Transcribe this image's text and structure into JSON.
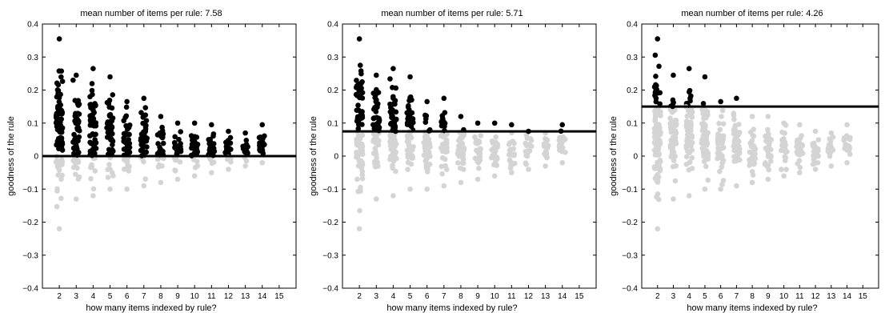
{
  "colors": {
    "above": "#000000",
    "below": "#d4d4d4",
    "threshold": "#000000",
    "frame": "#000000"
  },
  "chart_data": [
    {
      "type": "scatter",
      "title": "mean number of items per rule: 7.58",
      "xlabel": "how many items indexed by rule?",
      "ylabel": "goodness of the rule",
      "xlim": [
        1,
        16
      ],
      "ylim": [
        -0.4,
        0.4
      ],
      "xticks": [
        "2",
        "3",
        "4",
        "5",
        "6",
        "7",
        "8",
        "9",
        "10",
        "11",
        "12",
        "13",
        "14",
        "15"
      ],
      "yticks": [
        "0.4",
        "0.3",
        "0.2",
        "0.1",
        "0",
        "−0.1",
        "−0.2",
        "−0.3",
        "−0.4"
      ],
      "grid": false,
      "threshold": 0,
      "columns": [
        {
          "x": 2,
          "min": -0.22,
          "max": 0.355
        },
        {
          "x": 3,
          "min": -0.13,
          "max": 0.245
        },
        {
          "x": 4,
          "min": -0.12,
          "max": 0.265
        },
        {
          "x": 5,
          "min": -0.1,
          "max": 0.24
        },
        {
          "x": 6,
          "min": -0.1,
          "max": 0.165
        },
        {
          "x": 7,
          "min": -0.09,
          "max": 0.175
        },
        {
          "x": 8,
          "min": -0.08,
          "max": 0.12
        },
        {
          "x": 9,
          "min": -0.07,
          "max": 0.1
        },
        {
          "x": 10,
          "min": -0.06,
          "max": 0.1
        },
        {
          "x": 11,
          "min": -0.05,
          "max": 0.095
        },
        {
          "x": 12,
          "min": -0.04,
          "max": 0.075
        },
        {
          "x": 13,
          "min": -0.03,
          "max": 0.07
        },
        {
          "x": 14,
          "min": -0.02,
          "max": 0.095
        }
      ]
    },
    {
      "type": "scatter",
      "title": "mean number of items per rule: 5.71",
      "xlabel": "how many items indexed by rule?",
      "ylabel": "goodness of the rule",
      "xlim": [
        1,
        16
      ],
      "ylim": [
        -0.4,
        0.4
      ],
      "xticks": [
        "2",
        "3",
        "4",
        "5",
        "6",
        "7",
        "8",
        "9",
        "10",
        "11",
        "12",
        "13",
        "14",
        "15"
      ],
      "yticks": [
        "0.4",
        "0.3",
        "0.2",
        "0.1",
        "0",
        "−0.1",
        "−0.2",
        "−0.3",
        "−0.4"
      ],
      "grid": false,
      "threshold": 0.075,
      "columns": [
        {
          "x": 2,
          "min": -0.22,
          "max": 0.355
        },
        {
          "x": 3,
          "min": -0.13,
          "max": 0.245
        },
        {
          "x": 4,
          "min": -0.12,
          "max": 0.265
        },
        {
          "x": 5,
          "min": -0.1,
          "max": 0.24
        },
        {
          "x": 6,
          "min": -0.1,
          "max": 0.165
        },
        {
          "x": 7,
          "min": -0.09,
          "max": 0.175
        },
        {
          "x": 8,
          "min": -0.08,
          "max": 0.12
        },
        {
          "x": 9,
          "min": -0.07,
          "max": 0.1
        },
        {
          "x": 10,
          "min": -0.06,
          "max": 0.1
        },
        {
          "x": 11,
          "min": -0.05,
          "max": 0.095
        },
        {
          "x": 12,
          "min": -0.04,
          "max": 0.075
        },
        {
          "x": 13,
          "min": -0.03,
          "max": 0.07
        },
        {
          "x": 14,
          "min": -0.02,
          "max": 0.095
        }
      ]
    },
    {
      "type": "scatter",
      "title": "mean number of items per rule: 4.26",
      "xlabel": "how many items indexed by rule?",
      "ylabel": "goodness of the rule",
      "xlim": [
        1,
        16
      ],
      "ylim": [
        -0.4,
        0.4
      ],
      "xticks": [
        "2",
        "3",
        "4",
        "5",
        "6",
        "7",
        "8",
        "9",
        "10",
        "11",
        "12",
        "13",
        "14",
        "15"
      ],
      "yticks": [
        "0.4",
        "0.3",
        "0.2",
        "0.1",
        "0",
        "−0.1",
        "−0.2",
        "−0.3",
        "−0.4"
      ],
      "grid": false,
      "threshold": 0.15,
      "columns": [
        {
          "x": 2,
          "min": -0.22,
          "max": 0.355
        },
        {
          "x": 3,
          "min": -0.13,
          "max": 0.245
        },
        {
          "x": 4,
          "min": -0.12,
          "max": 0.265
        },
        {
          "x": 5,
          "min": -0.1,
          "max": 0.24
        },
        {
          "x": 6,
          "min": -0.1,
          "max": 0.165
        },
        {
          "x": 7,
          "min": -0.09,
          "max": 0.175
        },
        {
          "x": 8,
          "min": -0.08,
          "max": 0.12
        },
        {
          "x": 9,
          "min": -0.07,
          "max": 0.12
        },
        {
          "x": 10,
          "min": -0.06,
          "max": 0.1
        },
        {
          "x": 11,
          "min": -0.05,
          "max": 0.095
        },
        {
          "x": 12,
          "min": -0.04,
          "max": 0.075
        },
        {
          "x": 13,
          "min": -0.03,
          "max": 0.07
        },
        {
          "x": 14,
          "min": -0.02,
          "max": 0.095
        }
      ]
    }
  ]
}
